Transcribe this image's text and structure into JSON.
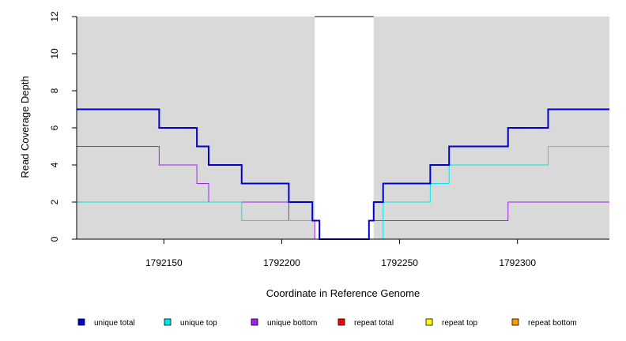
{
  "chart_data": {
    "type": "line",
    "xlabel": "Coordinate in Reference Genome",
    "ylabel": "Read Coverage Depth",
    "xlim": [
      1792113,
      1792339
    ],
    "ylim": [
      0,
      12
    ],
    "x_ticks": [
      1792150,
      1792200,
      1792250,
      1792300
    ],
    "x_tick_labels": [
      "1792150",
      "1792200",
      "1792250",
      "1792300"
    ],
    "y_ticks": [
      0,
      2,
      4,
      6,
      8,
      10,
      12
    ],
    "y_tick_labels": [
      "0",
      "2",
      "4",
      "6",
      "8",
      "10",
      "12"
    ],
    "shaded_regions": [
      {
        "x": [
          1792113,
          1792214
        ],
        "color": "#d9d9d9"
      },
      {
        "x": [
          1792239,
          1792339
        ],
        "color": "#d9d9d9"
      }
    ],
    "gap_region": {
      "x": [
        1792214,
        1792239
      ],
      "top_line_y": 12
    },
    "series": [
      {
        "name": "unique total",
        "color": "#0000cc",
        "width": 2,
        "x": [
          1792113,
          1792148,
          1792148,
          1792164,
          1792164,
          1792169,
          1792169,
          1792183,
          1792183,
          1792203,
          1792203,
          1792213,
          1792213,
          1792216,
          1792216,
          1792237,
          1792237,
          1792239,
          1792239,
          1792243,
          1792243,
          1792263,
          1792263,
          1792271,
          1792271,
          1792296,
          1792296,
          1792313,
          1792313,
          1792339
        ],
        "y": [
          7,
          7,
          6,
          6,
          5,
          5,
          4,
          4,
          3,
          3,
          2,
          2,
          1,
          1,
          0,
          0,
          1,
          1,
          2,
          2,
          3,
          3,
          4,
          4,
          5,
          5,
          6,
          6,
          7,
          7
        ]
      },
      {
        "name": "unique top",
        "color": "#00e5e5",
        "width": 1,
        "x": [
          1792113,
          1792183,
          1792183,
          1792216,
          1792216,
          1792243,
          1792243,
          1792263,
          1792263,
          1792271,
          1792271,
          1792313,
          1792313,
          1792339
        ],
        "y": [
          2,
          2,
          1,
          1,
          0,
          0,
          2,
          2,
          3,
          3,
          4,
          4,
          5,
          5
        ]
      },
      {
        "name": "unique bottom",
        "color": "#a020f0",
        "width": 1,
        "x": [
          1792113,
          1792148,
          1792148,
          1792164,
          1792164,
          1792169,
          1792169,
          1792203,
          1792203,
          1792214,
          1792214,
          1792237,
          1792237,
          1792296,
          1792296,
          1792339
        ],
        "y": [
          5,
          5,
          4,
          4,
          3,
          3,
          2,
          2,
          1,
          1,
          0,
          0,
          1,
          1,
          2,
          2
        ]
      },
      {
        "name": "repeat total",
        "color": "#ff0000",
        "width": 1,
        "x": [
          1792113,
          1792339
        ],
        "y": [
          0,
          0
        ]
      },
      {
        "name": "repeat top",
        "color": "#ffff00",
        "width": 1,
        "x": [
          1792113,
          1792339
        ],
        "y": [
          0,
          0
        ]
      },
      {
        "name": "repeat bottom",
        "color": "#ff9900",
        "width": 1,
        "x": [
          1792113,
          1792339
        ],
        "y": [
          0,
          0
        ]
      }
    ],
    "legend": {
      "placement": "bottom",
      "entries": [
        {
          "label": "unique total",
          "color": "#0000cc"
        },
        {
          "label": "unique top",
          "color": "#00e5e5"
        },
        {
          "label": "unique bottom",
          "color": "#a020f0"
        },
        {
          "label": "repeat total",
          "color": "#ff0000"
        },
        {
          "label": "repeat top",
          "color": "#ffff00"
        },
        {
          "label": "repeat bottom",
          "color": "#ff9900"
        }
      ]
    },
    "grid": false
  }
}
